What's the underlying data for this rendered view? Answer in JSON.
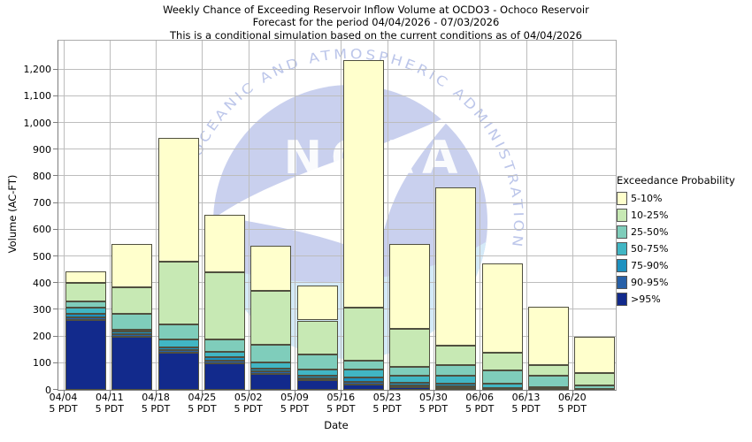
{
  "title": {
    "line1": "Weekly Chance of Exceeding Reservoir Inflow Volume at OCDO3 - Ochoco Reservoir",
    "line2": "Forecast for the period 04/04/2026 - 07/03/2026",
    "line3": "This is a conditional simulation based on the current conditions as of 04/04/2026"
  },
  "watermark": {
    "arc_text": "NATIONAL OCEANIC AND ATMOSPHERIC ADMINISTRATION",
    "center_text": "NOAA",
    "circle_color": "#c9d0ee",
    "arc_text_color": "#bcc6ea",
    "ocean_color": "#d4eaf8",
    "bird_color": "#ffffff"
  },
  "legend": {
    "title": "Exceedance Probability",
    "items": [
      {
        "label": "5-10%",
        "color": "#FFFFCC"
      },
      {
        "label": "10-25%",
        "color": "#C7E9B4"
      },
      {
        "label": "25-50%",
        "color": "#7FCDBB"
      },
      {
        "label": "50-75%",
        "color": "#41B6C4"
      },
      {
        "label": "75-90%",
        "color": "#1D91C0"
      },
      {
        "label": "90-95%",
        "color": "#2760A8"
      },
      {
        "label": ">95%",
        "color": "#122A8C"
      }
    ]
  },
  "chart_data": {
    "type": "bar",
    "stacked": true,
    "title": "Weekly Chance of Exceeding Reservoir Inflow Volume at OCDO3 - Ochoco Reservoir",
    "xlabel": "Date",
    "ylabel": "Volume (AC-FT)",
    "ylim": [
      0,
      1300
    ],
    "grid": true,
    "legend_position": "right",
    "y_ticks": [
      {
        "value": 0,
        "label": "0"
      },
      {
        "value": 100,
        "label": "100"
      },
      {
        "value": 200,
        "label": "200"
      },
      {
        "value": 300,
        "label": "300"
      },
      {
        "value": 400,
        "label": "400"
      },
      {
        "value": 500,
        "label": "500"
      },
      {
        "value": 600,
        "label": "600"
      },
      {
        "value": 700,
        "label": "700"
      },
      {
        "value": 800,
        "label": "800"
      },
      {
        "value": 900,
        "label": "900"
      },
      {
        "value": 1000,
        "label": "1,000"
      },
      {
        "value": 1100,
        "label": "1,100"
      },
      {
        "value": 1200,
        "label": "1,200"
      }
    ],
    "bands_bottom_up": [
      ">95%",
      "90-95%",
      "75-90%",
      "50-75%",
      "25-50%",
      "10-25%",
      "5-10%"
    ],
    "band_colors": {
      "5-10%": "#FFFFCC",
      "10-25%": "#C7E9B4",
      "25-50%": "#7FCDBB",
      "50-75%": "#41B6C4",
      "75-90%": "#1D91C0",
      "90-95%": "#2760A8",
      ">95%": "#122A8C"
    },
    "bars": [
      {
        "date": "04/04",
        "time": "5 PDT",
        "cumulative_ac_ft": {
          ">95%": 260,
          "90-95%": 272,
          "75-90%": 286,
          "50-75%": 307,
          "25-50%": 330,
          "10-25%": 400,
          "5-10%": 445
        }
      },
      {
        "date": "04/11",
        "time": "5 PDT",
        "cumulative_ac_ft": {
          ">95%": 200,
          "90-95%": 210,
          "75-90%": 217,
          "50-75%": 225,
          "25-50%": 285,
          "10-25%": 385,
          "5-10%": 545
        }
      },
      {
        "date": "04/18",
        "time": "5 PDT",
        "cumulative_ac_ft": {
          ">95%": 140,
          "90-95%": 150,
          "75-90%": 160,
          "50-75%": 190,
          "25-50%": 245,
          "10-25%": 480,
          "5-10%": 945
        }
      },
      {
        "date": "04/25",
        "time": "5 PDT",
        "cumulative_ac_ft": {
          ">95%": 100,
          "90-95%": 110,
          "75-90%": 121,
          "50-75%": 141,
          "25-50%": 190,
          "10-25%": 440,
          "5-10%": 655
        }
      },
      {
        "date": "05/02",
        "time": "5 PDT",
        "cumulative_ac_ft": {
          ">95%": 60,
          "90-95%": 68,
          "75-90%": 78,
          "50-75%": 104,
          "25-50%": 168,
          "10-25%": 370,
          "5-10%": 540
        }
      },
      {
        "date": "05/09",
        "time": "5 PDT",
        "cumulative_ac_ft": {
          ">95%": 35,
          "90-95%": 42,
          "75-90%": 53,
          "50-75%": 75,
          "25-50%": 133,
          "10-25%": 260,
          "5-10%": 390
        }
      },
      {
        "date": "05/16",
        "time": "5 PDT",
        "cumulative_ac_ft": {
          ">95%": 20,
          "90-95%": 30,
          "75-90%": 47,
          "50-75%": 77,
          "25-50%": 109,
          "10-25%": 308,
          "5-10%": 1235
        }
      },
      {
        "date": "05/23",
        "time": "5 PDT",
        "cumulative_ac_ft": {
          ">95%": 10,
          "90-95%": 16,
          "75-90%": 26,
          "50-75%": 53,
          "25-50%": 86,
          "10-25%": 227,
          "5-10%": 545
        }
      },
      {
        "date": "05/30",
        "time": "5 PDT",
        "cumulative_ac_ft": {
          ">95%": 8,
          "90-95%": 12,
          "75-90%": 22,
          "50-75%": 52,
          "25-50%": 92,
          "10-25%": 164,
          "5-10%": 760
        }
      },
      {
        "date": "06/06",
        "time": "5 PDT",
        "cumulative_ac_ft": {
          ">95%": 3,
          "90-95%": 5,
          "75-90%": 8,
          "50-75%": 24,
          "25-50%": 72,
          "10-25%": 140,
          "5-10%": 475
        }
      },
      {
        "date": "06/13",
        "time": "5 PDT",
        "cumulative_ac_ft": {
          ">95%": 2,
          "90-95%": 3,
          "75-90%": 5,
          "50-75%": 10,
          "25-50%": 53,
          "10-25%": 92,
          "5-10%": 310
        }
      },
      {
        "date": "06/20",
        "time": "5 PDT",
        "cumulative_ac_ft": {
          ">95%": 0,
          "90-95%": 1,
          "75-90%": 1,
          "50-75%": 3,
          "25-50%": 17,
          "10-25%": 64,
          "5-10%": 200
        }
      }
    ]
  }
}
